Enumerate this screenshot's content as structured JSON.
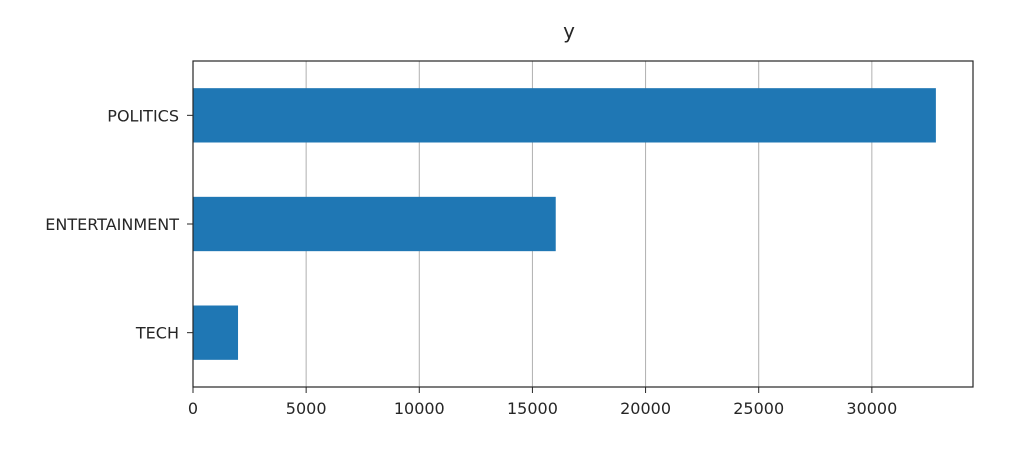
{
  "chart_data": {
    "type": "bar",
    "orientation": "horizontal",
    "title": "y",
    "xlabel": "",
    "ylabel": "",
    "categories": [
      "TECH",
      "ENTERTAINMENT",
      "POLITICS"
    ],
    "values": [
      1990,
      16030,
      32830
    ],
    "xlim": [
      0,
      34470
    ],
    "xticks": [
      0,
      5000,
      10000,
      15000,
      20000,
      25000,
      30000
    ],
    "grid": "x",
    "bar_color": "#1f77b4",
    "legend": "none"
  }
}
